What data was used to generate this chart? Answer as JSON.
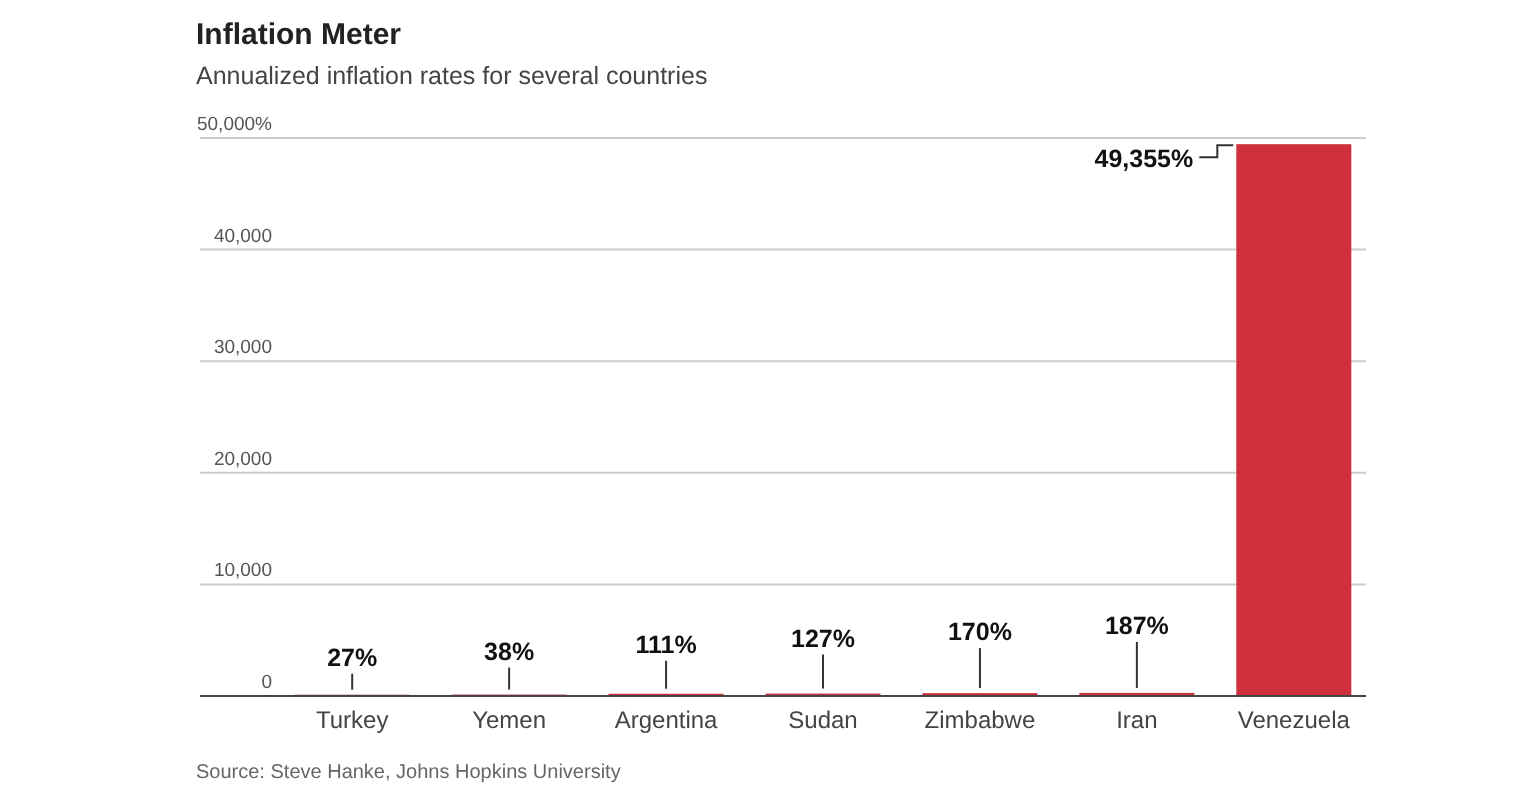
{
  "chart_data": {
    "type": "bar",
    "title": "Inflation Meter",
    "subtitle": "Annualized inflation rates for several countries",
    "categories": [
      "Turkey",
      "Yemen",
      "Argentina",
      "Sudan",
      "Zimbabwe",
      "Iran",
      "Venezuela"
    ],
    "values": [
      27,
      38,
      111,
      127,
      170,
      187,
      49355
    ],
    "value_labels": [
      "27%",
      "38%",
      "111%",
      "127%",
      "170%",
      "187%",
      "49,355%"
    ],
    "color": "#d0303b",
    "ylim": [
      0,
      50000
    ],
    "yticks": [
      0,
      {
        "value": 10000,
        "label": "10,000"
      },
      {
        "value": 20000,
        "label": "20,000"
      },
      {
        "value": 30000,
        "label": "30,000"
      },
      {
        "value": 40000,
        "label": "40,000"
      },
      {
        "value": 50000,
        "label": "50,000%"
      }
    ],
    "grid": "y",
    "annotations": [
      "Source: Steve Hanke, Johns Hopkins University"
    ]
  }
}
